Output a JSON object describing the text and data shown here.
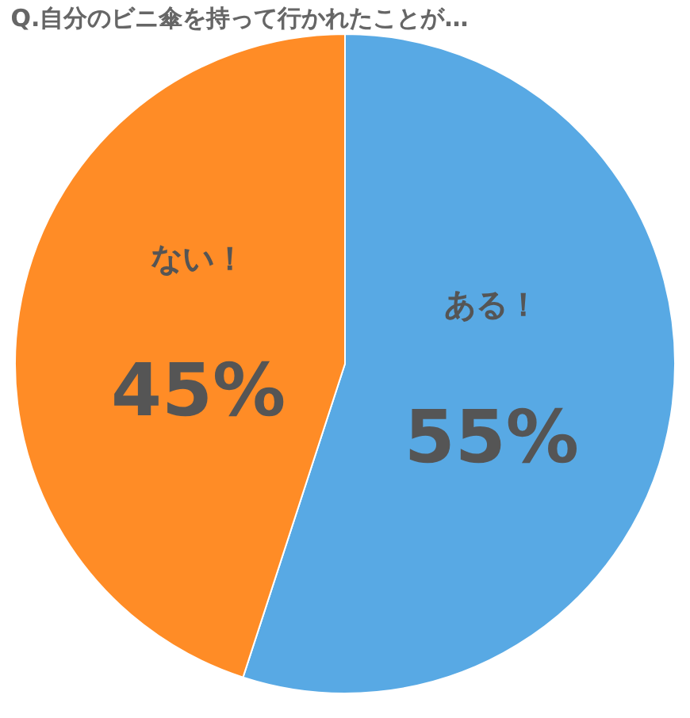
{
  "chart_data": {
    "type": "pie",
    "title": "Q.自分のビニ傘を持って行かれたことが…",
    "categories": [
      "ある！",
      "ない！"
    ],
    "values": [
      55,
      45
    ],
    "value_labels": [
      "55%",
      "45%"
    ],
    "colors": [
      "#58a9e4",
      "#ff8c26"
    ]
  }
}
